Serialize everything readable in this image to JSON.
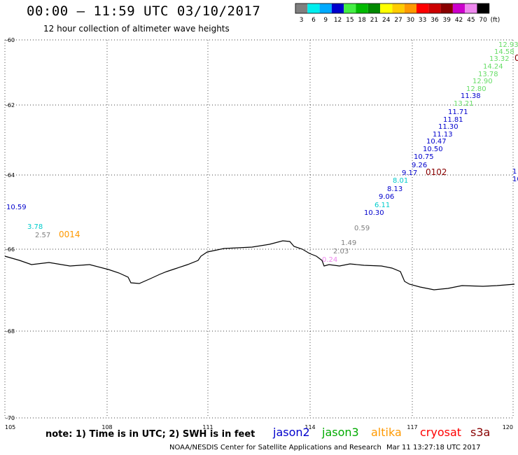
{
  "header": {
    "title": "00:00 – 11:59 UTC 03/10/2017",
    "subtitle": "12 hour collection of altimeter wave heights"
  },
  "legend": {
    "labels": [
      "3",
      "6",
      "9",
      "12",
      "15",
      "18",
      "21",
      "24",
      "27",
      "30",
      "33",
      "36",
      "39",
      "42",
      "45",
      "70",
      "(ft)"
    ],
    "colors": [
      "#7f7f7f",
      "#00eeee",
      "#00aaff",
      "#0000cc",
      "#44ee44",
      "#00bb00",
      "#008800",
      "#ffff00",
      "#ffcc00",
      "#ff9900",
      "#ff0000",
      "#cc0000",
      "#880000",
      "#cc00cc",
      "#ee88ee",
      "#000000"
    ]
  },
  "axes": {
    "lat_labels": [
      "-60",
      "-62",
      "-64",
      "-66",
      "-68",
      "-70"
    ],
    "lon_labels": [
      "105",
      "108",
      "111",
      "114",
      "117",
      "120"
    ]
  },
  "observations": [
    {
      "text": "12.93",
      "color": "#66dd66"
    },
    {
      "text": "14.58",
      "color": "#66dd66"
    },
    {
      "text": "13.32",
      "color": "#66dd66"
    },
    {
      "text": "14.24",
      "color": "#66dd66"
    },
    {
      "text": "13.78",
      "color": "#66dd66"
    },
    {
      "text": "12.90",
      "color": "#66dd66"
    },
    {
      "text": "12.80",
      "color": "#66dd66"
    },
    {
      "text": "11.38",
      "color": "#0000cc"
    },
    {
      "text": "13.21",
      "color": "#66dd66"
    },
    {
      "text": "11.71",
      "color": "#0000cc"
    },
    {
      "text": "11.81",
      "color": "#0000cc"
    },
    {
      "text": "11.30",
      "color": "#0000cc"
    },
    {
      "text": "11.13",
      "color": "#0000cc"
    },
    {
      "text": "10.47",
      "color": "#0000cc"
    },
    {
      "text": "10.50",
      "color": "#0000cc"
    },
    {
      "text": "10.75",
      "color": "#0000cc"
    },
    {
      "text": "9.26",
      "color": "#0000cc"
    },
    {
      "text": "9.17",
      "color": "#0000cc"
    },
    {
      "text": "8.01",
      "color": "#00cccc"
    },
    {
      "text": "8.13",
      "color": "#0000cc"
    },
    {
      "text": "9.06",
      "color": "#0000cc"
    },
    {
      "text": "6.11",
      "color": "#00cccc"
    },
    {
      "text": "10.30",
      "color": "#0000cc"
    },
    {
      "text": "0.59",
      "color": "#7f7f7f"
    },
    {
      "text": "1.49",
      "color": "#7f7f7f"
    },
    {
      "text": "2.03",
      "color": "#7f7f7f"
    },
    {
      "text": "0.24",
      "color": "#ee88ee"
    },
    {
      "text": "10.59",
      "color": "#0000cc"
    },
    {
      "text": "3.78",
      "color": "#00cccc"
    },
    {
      "text": "2.57",
      "color": "#7f7f7f"
    },
    {
      "text": "0014",
      "color": "#ff9900"
    },
    {
      "text": "0102",
      "color": "#880000"
    },
    {
      "text": "0",
      "color": "#880000"
    },
    {
      "text": "1",
      "color": "#0000cc"
    },
    {
      "text": "10",
      "color": "#0000cc"
    }
  ],
  "footer": {
    "note": "note: 1) Time is in UTC; 2) SWH is in feet",
    "credit": "NOAA/NESDIS Center for Satellite Applications and Research",
    "timestamp": "Mar 11 13:27:18 UTC 2017"
  },
  "satellites": [
    {
      "name": "jason2",
      "color": "#0000cc"
    },
    {
      "name": "jason3",
      "color": "#00aa00"
    },
    {
      "name": "altika",
      "color": "#ff9900"
    },
    {
      "name": "cryosat",
      "color": "#ff0000"
    },
    {
      "name": "s3a",
      "color": "#880000"
    }
  ]
}
